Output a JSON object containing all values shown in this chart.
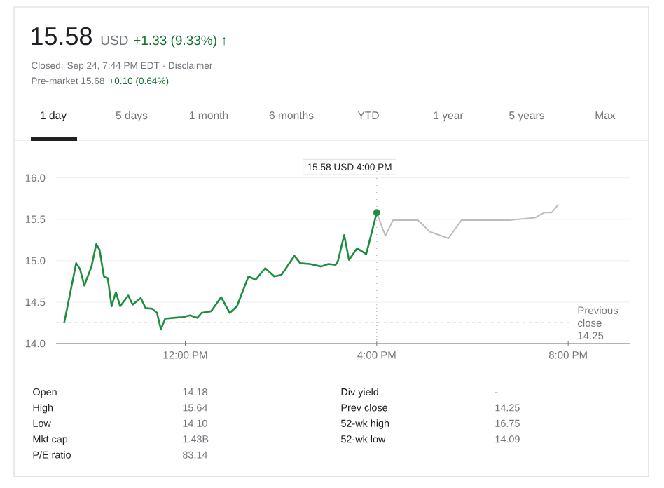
{
  "chart_data": {
    "type": "line",
    "title": "15.58",
    "annotations": [
      "USD",
      "+1.33 (9.33%) ↑",
      "Closed: Sep 24, 7:44 PM EDT · Disclaimer",
      "Pre-market 15.68",
      "+0.10 (0.64%)",
      "1 day",
      "5 days",
      "1 month",
      "6 months",
      "YTD",
      "1 year",
      "5 years",
      "Max",
      "15.58 USD 4:00 PM",
      "Open",
      "14.18",
      "High",
      "15.64",
      "Low",
      "14.10",
      "Mkt cap",
      "1.43B",
      "P/E ratio",
      "83.14",
      "Div yield",
      "-",
      "Prev close",
      "14.25",
      "52-wk high",
      "16.75",
      "52-wk low",
      "14.09"
    ],
    "series": [
      {
        "color": "#1e8e3e",
        "x": [
          9.47,
          9.72,
          9.8,
          9.89,
          10.04,
          10.14,
          10.21,
          10.3,
          10.38,
          10.46,
          10.55,
          10.64,
          10.81,
          10.9,
          11.07,
          11.17,
          11.31,
          11.41,
          11.49,
          11.58,
          11.75,
          11.95,
          12.1,
          12.25,
          12.34,
          12.54,
          12.75,
          12.93,
          13.08,
          13.32,
          13.47,
          13.67,
          13.86,
          14.01,
          14.28,
          14.4,
          14.6,
          14.84,
          14.99,
          15.14,
          15.19,
          15.32,
          15.42,
          15.59,
          15.78,
          16
        ],
        "values": [
          14.25,
          14.97,
          14.9,
          14.7,
          14.93,
          15.2,
          15.13,
          14.81,
          14.79,
          14.45,
          14.62,
          14.45,
          14.58,
          14.47,
          14.55,
          14.43,
          14.42,
          14.37,
          14.17,
          14.3,
          14.31,
          14.32,
          14.34,
          14.31,
          14.37,
          14.39,
          14.56,
          14.37,
          14.45,
          14.81,
          14.77,
          14.91,
          14.81,
          14.83,
          15.06,
          14.97,
          14.96,
          14.93,
          14.96,
          14.95,
          15.0,
          15.31,
          15.01,
          15.15,
          15.08,
          15.58
        ]
      },
      {
        "color": "#bdbdbd",
        "x": [
          16,
          16.18,
          16.34,
          16.86,
          17.11,
          17.5,
          17.77,
          18.77,
          19.31,
          19.5,
          19.65,
          19.8
        ],
        "values": [
          15.58,
          15.3,
          15.49,
          15.49,
          15.35,
          15.27,
          15.49,
          15.49,
          15.52,
          15.58,
          15.58,
          15.68
        ]
      },
      {
        "type": "scatter",
        "color": "#1e8e3e",
        "marker": "circle",
        "x": [
          16
        ],
        "values": [
          15.58
        ]
      }
    ],
    "xlim": [
      9.3,
      21.3
    ],
    "ylim": [
      14.0,
      16.15
    ],
    "xticks": [
      {
        "value": 12,
        "label": "12:00 PM"
      },
      {
        "value": 16,
        "label": "4:00 PM"
      },
      {
        "value": 20,
        "label": "8:00 PM"
      }
    ],
    "yticks": [
      {
        "value": 14,
        "label": "14.0"
      },
      14.5,
      {
        "value": 15,
        "label": "15.0"
      },
      15.5,
      {
        "value": 16,
        "label": "16.0"
      }
    ],
    "ref_lines": [
      {
        "axis": "y",
        "value": 14.25,
        "label": "Previous close 14.25",
        "color": "#9e9e9e",
        "line_style": "dashed"
      },
      {
        "axis": "x",
        "value": 16,
        "color": "#9e9e9e",
        "line_style": "dotted"
      }
    ],
    "grid": "y"
  }
}
